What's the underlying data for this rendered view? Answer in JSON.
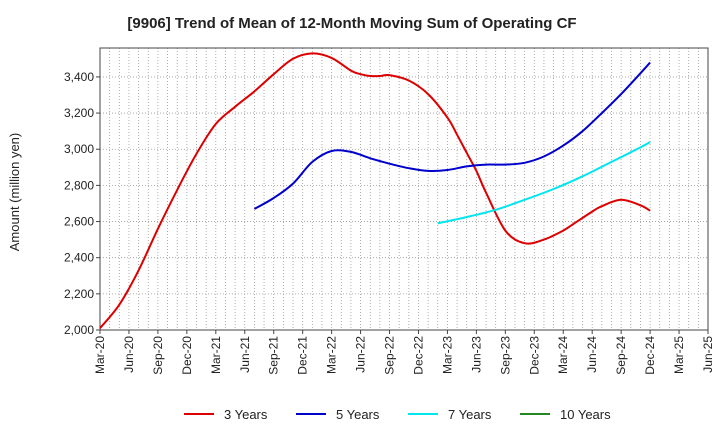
{
  "chart_data": {
    "type": "line",
    "title": "[9906]  Trend of Mean of 12-Month Moving Sum of Operating CF",
    "xlabel": "",
    "ylabel": "Amount (million yen)",
    "ylim": [
      2000,
      3560
    ],
    "yticks": [
      2000,
      2200,
      2400,
      2600,
      2800,
      3000,
      3200,
      3400
    ],
    "ytick_labels": [
      "2,000",
      "2,200",
      "2,400",
      "2,600",
      "2,800",
      "3,000",
      "3,200",
      "3,400"
    ],
    "x_range": [
      0,
      63
    ],
    "x_tick_labels": [
      "Mar-20",
      "Jun-20",
      "Sep-20",
      "Dec-20",
      "Mar-21",
      "Jun-21",
      "Sep-21",
      "Dec-21",
      "Mar-22",
      "Jun-22",
      "Sep-22",
      "Dec-22",
      "Mar-23",
      "Jun-23",
      "Sep-23",
      "Dec-23",
      "Mar-24",
      "Jun-24",
      "Sep-24",
      "Dec-24",
      "Mar-25",
      "Jun-25"
    ],
    "grid": true,
    "legend_position": "bottom",
    "series": [
      {
        "name": "3 Years",
        "color": "#dd0000",
        "x": [
          0,
          2,
          4,
          6,
          8,
          10,
          12,
          14,
          16,
          18,
          20,
          22,
          24,
          26,
          27,
          28,
          29,
          30,
          32,
          34,
          36,
          37,
          38,
          39,
          40,
          42,
          44,
          46,
          48,
          49,
          50,
          51,
          52,
          54,
          56,
          57
        ],
        "values": [
          2010,
          2140,
          2330,
          2560,
          2775,
          2975,
          3140,
          3235,
          3320,
          3415,
          3500,
          3530,
          3505,
          3435,
          3415,
          3405,
          3405,
          3410,
          3380,
          3305,
          3175,
          3080,
          2980,
          2880,
          2760,
          2550,
          2480,
          2500,
          2550,
          2585,
          2620,
          2655,
          2685,
          2720,
          2690,
          2660
        ]
      },
      {
        "name": "5 Years",
        "color": "#0000cc",
        "x": [
          16,
          18,
          20,
          22,
          24,
          26,
          28,
          30,
          32,
          34,
          36,
          38,
          40,
          42,
          44,
          46,
          48,
          50,
          52,
          54,
          56,
          57
        ],
        "values": [
          2670,
          2730,
          2810,
          2930,
          2990,
          2985,
          2950,
          2920,
          2895,
          2880,
          2885,
          2905,
          2915,
          2915,
          2925,
          2960,
          3020,
          3100,
          3200,
          3305,
          3420,
          3480
        ]
      },
      {
        "name": "7 Years",
        "color": "#00e5ee",
        "x": [
          35,
          38,
          41,
          44,
          47,
          50,
          53,
          56,
          57
        ],
        "values": [
          2590,
          2625,
          2665,
          2720,
          2780,
          2850,
          2930,
          3010,
          3040
        ]
      },
      {
        "name": "10 Years",
        "color": "#228822",
        "x": [],
        "values": []
      }
    ]
  }
}
